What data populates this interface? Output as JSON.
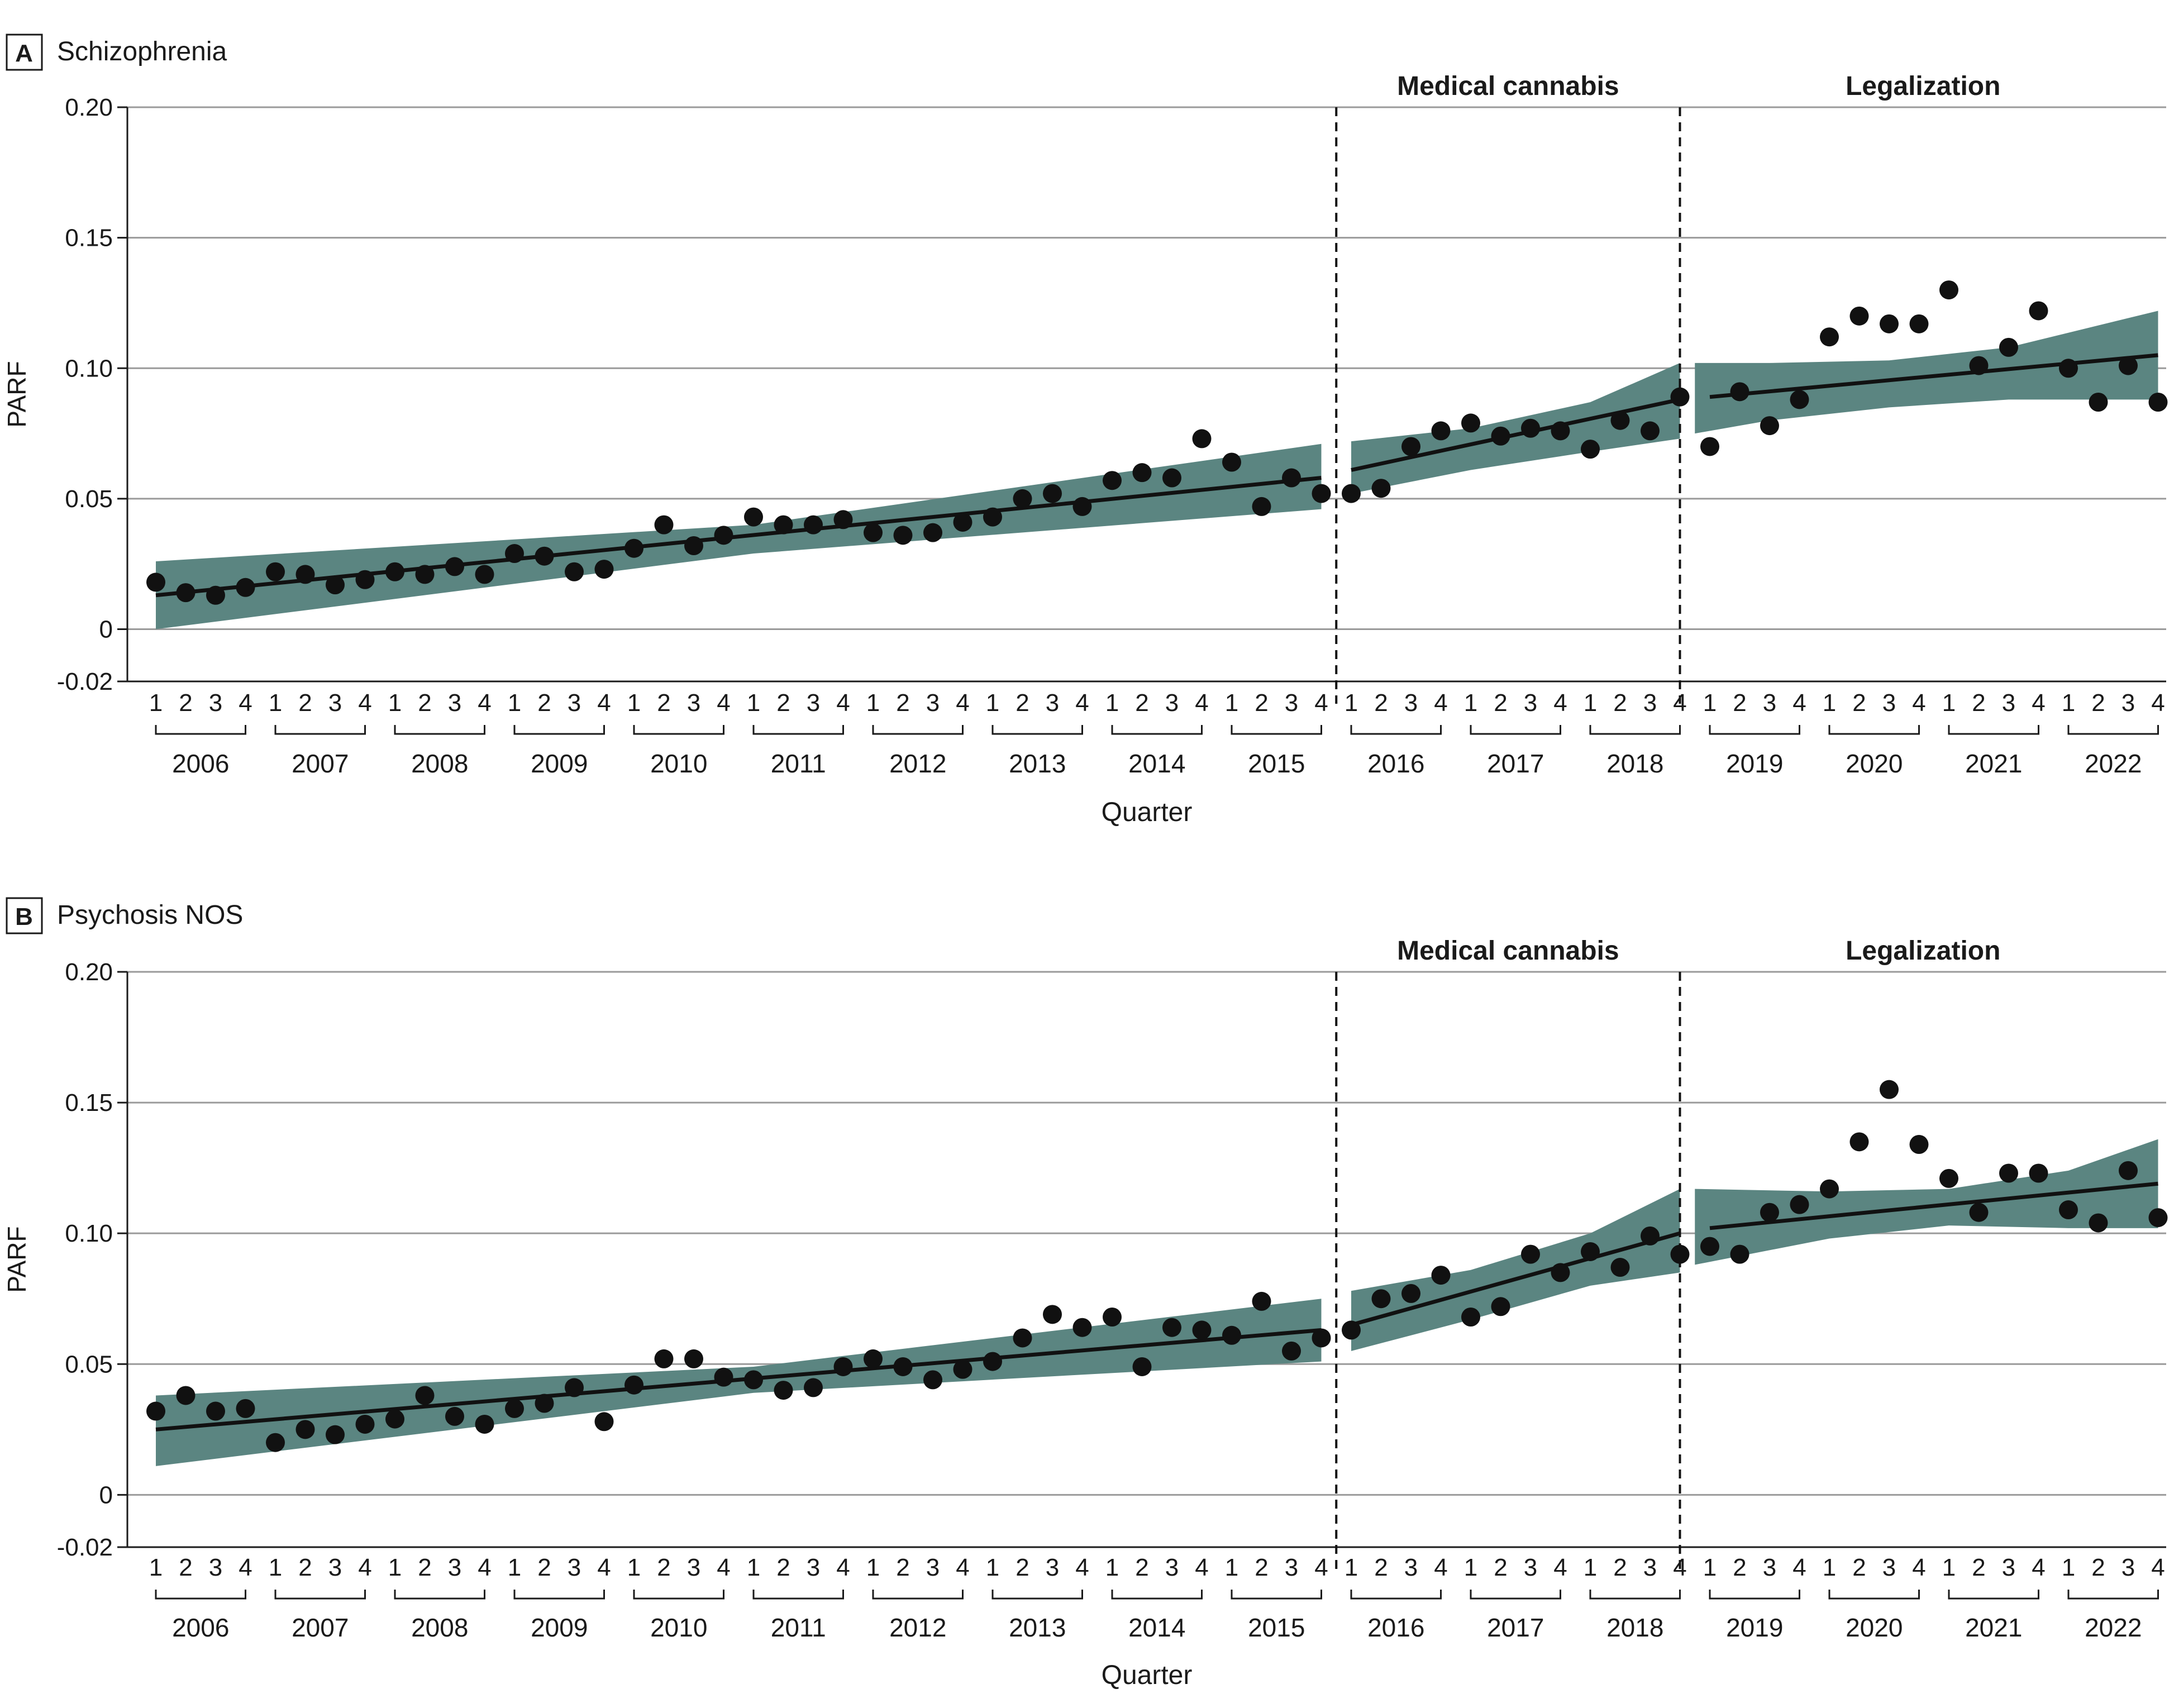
{
  "colors": {
    "band": "#5b8581",
    "points": "#111111",
    "grid": "#9a9a9a"
  },
  "chart_data": [
    {
      "type": "scatter",
      "panel": "A",
      "title": "Schizophrenia",
      "xlabel": "Quarter",
      "ylabel": "PARF",
      "ylim": [
        -0.02,
        0.2
      ],
      "yticks": [
        -0.02,
        0,
        0.05,
        0.1,
        0.15,
        0.2
      ],
      "ytick_labels": [
        "-0.02",
        "0",
        "0.05",
        "0.10",
        "0.15",
        "0.20"
      ],
      "years": [
        "2006",
        "2007",
        "2008",
        "2009",
        "2010",
        "2011",
        "2012",
        "2013",
        "2014",
        "2015",
        "2016",
        "2017",
        "2018",
        "2019",
        "2020",
        "2021",
        "2022"
      ],
      "quarters": [
        "1",
        "2",
        "3",
        "4"
      ],
      "period_labels": [
        "Medical cannabis",
        "Legalization"
      ],
      "period_breaks": [
        40,
        51.5
      ],
      "points": [
        0.018,
        0.014,
        0.013,
        0.016,
        0.022,
        0.021,
        0.017,
        0.019,
        0.022,
        0.021,
        0.024,
        0.021,
        0.029,
        0.028,
        0.022,
        0.023,
        0.031,
        0.04,
        0.032,
        0.036,
        0.043,
        0.04,
        0.04,
        0.042,
        0.037,
        0.036,
        0.037,
        0.041,
        0.043,
        0.05,
        0.052,
        0.047,
        0.057,
        0.06,
        0.058,
        0.073,
        0.064,
        0.047,
        0.058,
        0.052,
        0.052,
        0.054,
        0.07,
        0.076,
        0.079,
        0.074,
        0.077,
        0.076,
        0.069,
        0.08,
        0.076,
        0.089,
        0.07,
        0.091,
        0.078,
        0.088,
        0.112,
        0.12,
        0.117,
        0.117,
        0.13,
        0.101,
        0.108,
        0.122,
        0.1,
        0.087,
        0.101,
        0.087
      ],
      "segments": [
        {
          "start": 0,
          "end": 39,
          "trend": [
            0.013,
            0.058
          ],
          "band": [
            {
              "x": 0,
              "lower": 0.0,
              "upper": 0.026
            },
            {
              "x": 20,
              "lower": 0.029,
              "upper": 0.04
            },
            {
              "x": 39,
              "lower": 0.046,
              "upper": 0.071
            }
          ]
        },
        {
          "start": 40,
          "end": 51,
          "trend": [
            0.061,
            0.088
          ],
          "band": [
            {
              "x": 40,
              "lower": 0.052,
              "upper": 0.072
            },
            {
              "x": 44,
              "lower": 0.061,
              "upper": 0.077
            },
            {
              "x": 48,
              "lower": 0.068,
              "upper": 0.087
            },
            {
              "x": 51,
              "lower": 0.073,
              "upper": 0.102
            }
          ]
        },
        {
          "start": 52,
          "end": 67,
          "trend": [
            0.089,
            0.105
          ],
          "band": [
            {
              "x": 51.5,
              "lower": 0.075,
              "upper": 0.102
            },
            {
              "x": 54,
              "lower": 0.08,
              "upper": 0.102
            },
            {
              "x": 58,
              "lower": 0.085,
              "upper": 0.103
            },
            {
              "x": 62,
              "lower": 0.088,
              "upper": 0.108
            },
            {
              "x": 67,
              "lower": 0.088,
              "upper": 0.122
            }
          ]
        }
      ]
    },
    {
      "type": "scatter",
      "panel": "B",
      "title": "Psychosis NOS",
      "xlabel": "Quarter",
      "ylabel": "PARF",
      "ylim": [
        -0.02,
        0.2
      ],
      "yticks": [
        -0.02,
        0,
        0.05,
        0.1,
        0.15,
        0.2
      ],
      "ytick_labels": [
        "-0.02",
        "0",
        "0.05",
        "0.10",
        "0.15",
        "0.20"
      ],
      "years": [
        "2006",
        "2007",
        "2008",
        "2009",
        "2010",
        "2011",
        "2012",
        "2013",
        "2014",
        "2015",
        "2016",
        "2017",
        "2018",
        "2019",
        "2020",
        "2021",
        "2022"
      ],
      "quarters": [
        "1",
        "2",
        "3",
        "4"
      ],
      "period_labels": [
        "Medical cannabis",
        "Legalization"
      ],
      "period_breaks": [
        40,
        51.5
      ],
      "points": [
        0.032,
        0.038,
        0.032,
        0.033,
        0.02,
        0.025,
        0.023,
        0.027,
        0.029,
        0.038,
        0.03,
        0.027,
        0.033,
        0.035,
        0.041,
        0.028,
        0.042,
        0.052,
        0.052,
        0.045,
        0.044,
        0.04,
        0.041,
        0.049,
        0.052,
        0.049,
        0.044,
        0.048,
        0.051,
        0.06,
        0.069,
        0.064,
        0.068,
        0.049,
        0.064,
        0.063,
        0.061,
        0.074,
        0.055,
        0.06,
        0.063,
        0.075,
        0.077,
        0.084,
        0.068,
        0.072,
        0.092,
        0.085,
        0.093,
        0.087,
        0.099,
        0.092,
        0.095,
        0.092,
        0.108,
        0.111,
        0.117,
        0.135,
        0.155,
        0.134,
        0.121,
        0.108,
        0.123,
        0.123,
        0.109,
        0.104,
        0.124,
        0.106
      ],
      "segments": [
        {
          "start": 0,
          "end": 39,
          "trend": [
            0.025,
            0.063
          ],
          "band": [
            {
              "x": 0,
              "lower": 0.011,
              "upper": 0.038
            },
            {
              "x": 20,
              "lower": 0.039,
              "upper": 0.049
            },
            {
              "x": 39,
              "lower": 0.051,
              "upper": 0.075
            }
          ]
        },
        {
          "start": 40,
          "end": 51,
          "trend": [
            0.065,
            0.1
          ],
          "band": [
            {
              "x": 40,
              "lower": 0.055,
              "upper": 0.078
            },
            {
              "x": 44,
              "lower": 0.067,
              "upper": 0.086
            },
            {
              "x": 48,
              "lower": 0.08,
              "upper": 0.1
            },
            {
              "x": 51,
              "lower": 0.085,
              "upper": 0.117
            }
          ]
        },
        {
          "start": 52,
          "end": 67,
          "trend": [
            0.102,
            0.119
          ],
          "band": [
            {
              "x": 51.5,
              "lower": 0.088,
              "upper": 0.117
            },
            {
              "x": 56,
              "lower": 0.098,
              "upper": 0.116
            },
            {
              "x": 60,
              "lower": 0.103,
              "upper": 0.117
            },
            {
              "x": 64,
              "lower": 0.102,
              "upper": 0.124
            },
            {
              "x": 67,
              "lower": 0.102,
              "upper": 0.136
            }
          ]
        }
      ]
    }
  ]
}
